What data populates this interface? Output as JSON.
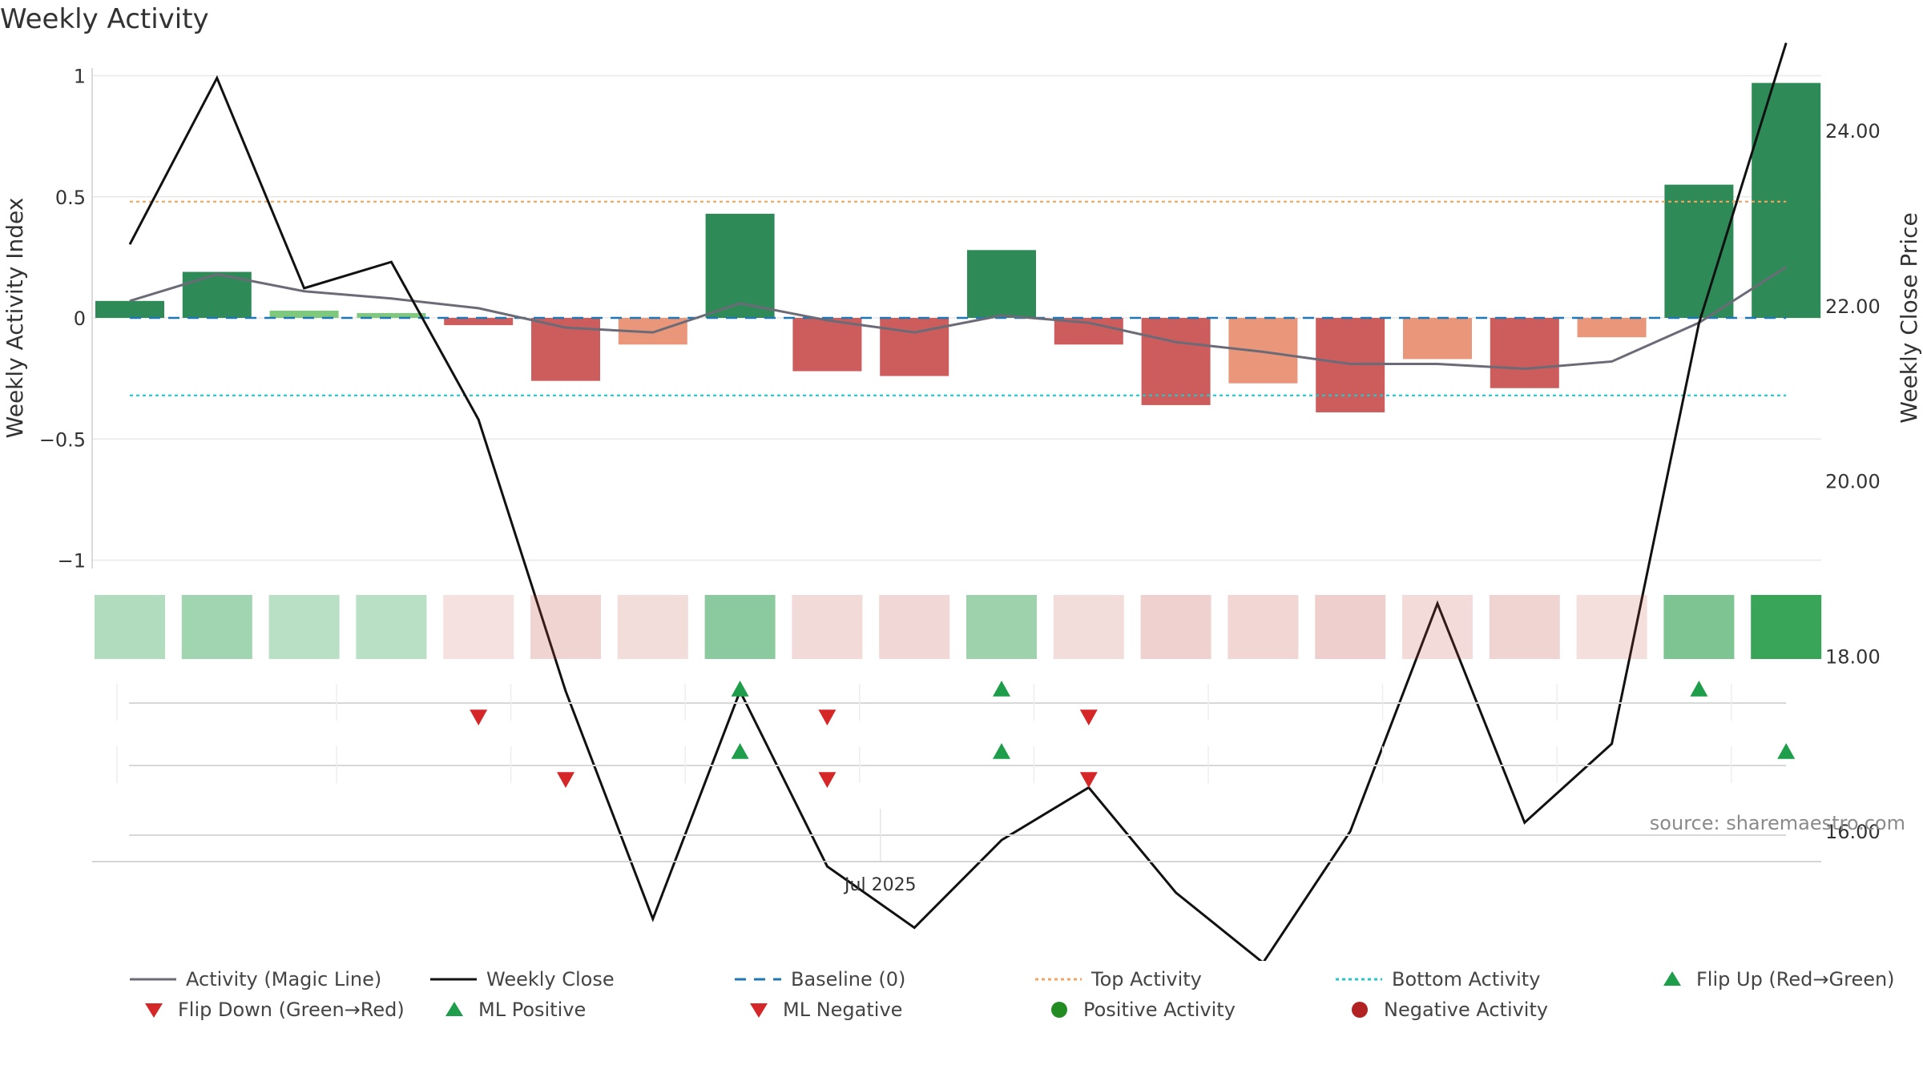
{
  "title": "Weekly Activity",
  "source": "source: sharemaestro.com",
  "colors": {
    "dark_green": "#2e8b57",
    "light_green": "#7fc97f",
    "dark_red": "#cd5c5c",
    "light_red": "#e9967a",
    "magic_line": "#6b6b78",
    "close": "#111111",
    "baseline": "#1f77b4",
    "top": "#f4a460",
    "bottom": "#20c9c9",
    "up_marker": "#1e9e4a",
    "down_marker": "#d62728",
    "pos_dot": "#228b22",
    "neg_dot": "#b22222"
  },
  "chart_data": {
    "type": "bar",
    "title": "Weekly Activity",
    "ylabel_left": "Weekly Activity Index",
    "ylabel_right": "Weekly Close Price",
    "ylim_left": [
      -1,
      1
    ],
    "ylim_right": [
      14,
      25.5
    ],
    "left_ticks": [
      "1",
      "0.5",
      "0",
      "−0.5",
      "−1"
    ],
    "left_tick_values": [
      1,
      0.5,
      0,
      -0.5,
      -1
    ],
    "right_ticks": [
      "24.00",
      "22.00",
      "20.00",
      "18.00",
      "16.00",
      "14.00"
    ],
    "right_tick_values": [
      24,
      22,
      20,
      18,
      16,
      14
    ],
    "x_tick_label": "Jul 2025",
    "x_tick_index": 8.5,
    "activity": [
      0.07,
      0.19,
      0.03,
      0.02,
      -0.03,
      -0.26,
      -0.11,
      0.43,
      -0.22,
      -0.24,
      0.28,
      -0.11,
      -0.36,
      -0.27,
      -0.39,
      -0.17,
      -0.29,
      -0.08,
      0.55,
      0.97
    ],
    "bar_shade": [
      "dark",
      "dark",
      "light",
      "light",
      "dark",
      "dark",
      "light",
      "dark",
      "dark",
      "dark",
      "dark",
      "dark",
      "dark",
      "light",
      "dark",
      "light",
      "dark",
      "light",
      "dark",
      "dark"
    ],
    "magic_line": [
      0.07,
      0.18,
      0.11,
      0.08,
      0.04,
      -0.04,
      -0.06,
      0.06,
      -0.01,
      -0.06,
      0.01,
      -0.02,
      -0.1,
      -0.14,
      -0.19,
      -0.19,
      -0.21,
      -0.18,
      -0.02,
      0.21
    ],
    "weekly_close": [
      22.7,
      24.6,
      22.2,
      22.5,
      20.7,
      17.6,
      15.0,
      17.6,
      15.6,
      14.9,
      15.9,
      16.5,
      15.3,
      14.5,
      16.0,
      18.6,
      16.1,
      17.0,
      21.8,
      25.0
    ],
    "baseline": 0,
    "top_activity": 0.48,
    "bottom_activity": -0.32,
    "heat_strip": [
      0.22,
      0.32,
      0.18,
      0.18,
      -0.12,
      -0.28,
      -0.18,
      0.44,
      -0.22,
      -0.24,
      0.34,
      -0.18,
      -0.32,
      -0.26,
      -0.34,
      -0.2,
      -0.28,
      -0.16,
      0.52,
      0.92
    ],
    "flip_row1": [
      {
        "i": 4,
        "dir": "down"
      },
      {
        "i": 7,
        "dir": "up"
      },
      {
        "i": 8,
        "dir": "down"
      },
      {
        "i": 10,
        "dir": "up"
      },
      {
        "i": 11,
        "dir": "down"
      },
      {
        "i": 18,
        "dir": "up"
      }
    ],
    "ml_row2": [
      {
        "i": 5,
        "dir": "down"
      },
      {
        "i": 7,
        "dir": "up"
      },
      {
        "i": 8,
        "dir": "down"
      },
      {
        "i": 10,
        "dir": "up"
      },
      {
        "i": 11,
        "dir": "down"
      },
      {
        "i": 19,
        "dir": "up"
      }
    ],
    "legend": [
      {
        "label": "Activity (Magic Line)",
        "kind": "line",
        "color": "#6b6b78",
        "dash": ""
      },
      {
        "label": "Weekly Close",
        "kind": "line",
        "color": "#111111",
        "dash": ""
      },
      {
        "label": "Baseline (0)",
        "kind": "line",
        "color": "#1f77b4",
        "dash": "14,10"
      },
      {
        "label": "Top Activity",
        "kind": "line",
        "color": "#f4a460",
        "dash": "4,4"
      },
      {
        "label": "Bottom Activity",
        "kind": "line",
        "color": "#20c9c9",
        "dash": "4,4"
      },
      {
        "label": "Flip Up (Red→Green)",
        "kind": "up",
        "color": "#1e9e4a"
      },
      {
        "label": "Flip Down (Green→Red)",
        "kind": "down",
        "color": "#d62728"
      },
      {
        "label": "ML Positive",
        "kind": "up",
        "color": "#1e9e4a"
      },
      {
        "label": "ML Negative",
        "kind": "down",
        "color": "#d62728"
      },
      {
        "label": "Positive Activity",
        "kind": "dot",
        "color": "#228b22"
      },
      {
        "label": "Negative Activity",
        "kind": "dot",
        "color": "#b22222"
      }
    ]
  }
}
